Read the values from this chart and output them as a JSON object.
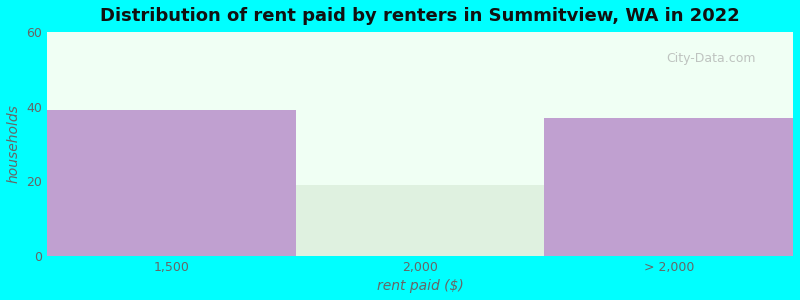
{
  "title": "Distribution of rent paid by renters in Summitview, WA in 2022",
  "xlabel": "rent paid ($)",
  "ylabel": "households",
  "xtick_labels": [
    "1,500",
    "2,000",
    "> 2,000"
  ],
  "values": [
    39,
    0,
    37
  ],
  "faint_value": 19,
  "bar_color": "#c0a0d0",
  "faint_bar_color": "#d8ecd8",
  "faint_bar_alpha": 0.7,
  "ylim": [
    0,
    60
  ],
  "yticks": [
    0,
    20,
    40,
    60
  ],
  "background_outer": "#00ffff",
  "plot_bg_color": "#f0fff4",
  "title_fontsize": 13,
  "axis_label_fontsize": 10,
  "tick_fontsize": 9,
  "watermark": "City-Data.com"
}
